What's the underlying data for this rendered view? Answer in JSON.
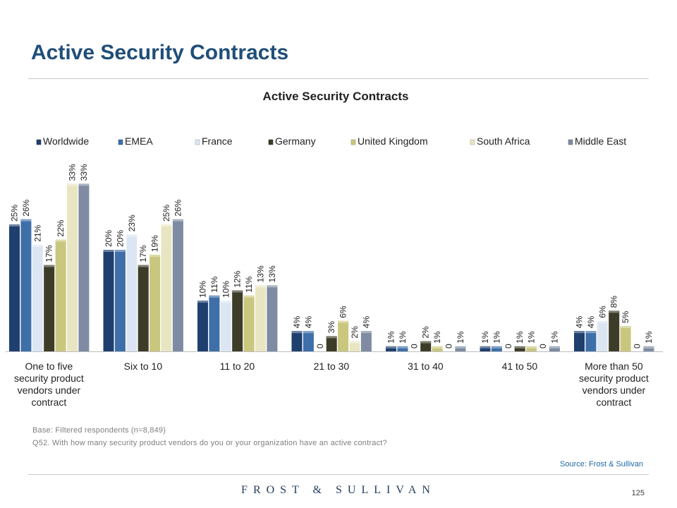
{
  "page": {
    "title": "Active Security Contracts",
    "base_note": "Base: Filtered respondents (n=8,849)",
    "question_note": "Q52. With how many security product vendors do you or your organization have an active contract?",
    "source": "Source: Frost & Sullivan",
    "logo_text": "FROST & SULLIVAN",
    "page_number": "125"
  },
  "chart_data": {
    "type": "bar",
    "title": "Active Security Contracts",
    "legend_position": "top",
    "grid": false,
    "ylim": [
      0,
      35
    ],
    "categories": [
      "One to five security product vendors under contract",
      "Six to 10",
      "11 to 20",
      "21 to 30",
      "31 to 40",
      "41 to 50",
      "More than 50 security product vendors under contract"
    ],
    "series": [
      {
        "name": "Worldwide",
        "color": "#1f3f6e",
        "values": [
          25,
          20,
          10,
          4,
          1,
          1,
          4
        ],
        "labels": [
          "25%",
          "20%",
          "10%",
          "4%",
          "1%",
          "1%",
          "4%"
        ]
      },
      {
        "name": "EMEA",
        "color": "#3e6fa8",
        "values": [
          26,
          20,
          11,
          4,
          1,
          1,
          4
        ],
        "labels": [
          "26%",
          "20%",
          "11%",
          "4%",
          "1%",
          "1%",
          "4%"
        ]
      },
      {
        "name": "France",
        "color": "#dce6f2",
        "values": [
          21,
          23,
          10,
          0,
          0,
          0,
          6
        ],
        "labels": [
          "21%",
          "23%",
          "10%",
          "0",
          "0",
          "0",
          "6%"
        ]
      },
      {
        "name": "Germany",
        "color": "#3c3c28",
        "values": [
          17,
          17,
          12,
          3,
          2,
          1,
          8
        ],
        "labels": [
          "17%",
          "17%",
          "12%",
          "3%",
          "2%",
          "1%",
          "8%"
        ]
      },
      {
        "name": "United Kingdom",
        "color": "#c9c77e",
        "values": [
          22,
          19,
          11,
          6,
          1,
          1,
          5
        ],
        "labels": [
          "22%",
          "19%",
          "11%",
          "6%",
          "1%",
          "1%",
          "5%"
        ]
      },
      {
        "name": "South Africa",
        "color": "#e8e6c2",
        "values": [
          33,
          25,
          13,
          2,
          0,
          0,
          0
        ],
        "labels": [
          "33%",
          "25%",
          "13%",
          "2%",
          "0",
          "0",
          "0"
        ]
      },
      {
        "name": "Middle East",
        "color": "#7e8ba3",
        "values": [
          33,
          26,
          13,
          4,
          1,
          1,
          1
        ],
        "labels": [
          "33%",
          "26%",
          "13%",
          "4%",
          "1%",
          "1%",
          "1%"
        ]
      }
    ]
  }
}
